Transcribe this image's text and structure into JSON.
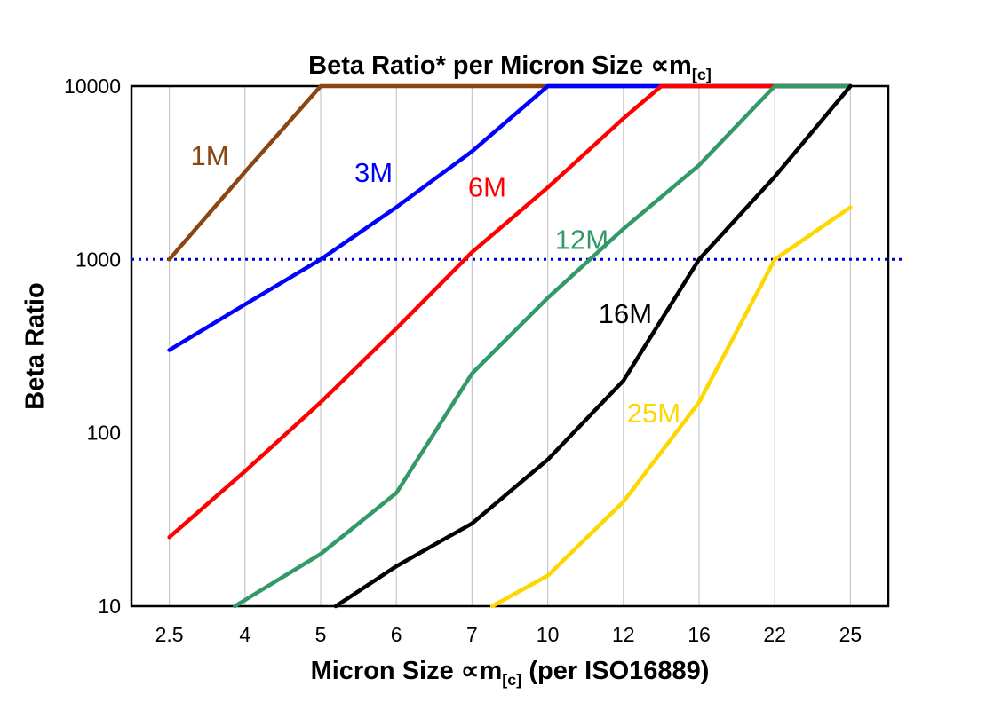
{
  "title": {
    "text": "Beta Ratio* per Micron Size ",
    "mu": "∝m",
    "sub": "[c]"
  },
  "xlabel": {
    "pre": "Micron Size ",
    "mu": "∝m",
    "sub": "[c]",
    "post": " (per ISO16889)"
  },
  "ylabel": "Beta Ratio",
  "chart_data": {
    "type": "line",
    "title": "Beta Ratio* per Micron Size ∝m[c]",
    "xlabel": "Micron Size ∝m[c] (per ISO16889)",
    "ylabel": "Beta Ratio",
    "x_categories": [
      "2.5",
      "4",
      "5",
      "6",
      "7",
      "10",
      "12",
      "16",
      "22",
      "25"
    ],
    "x_values": [
      2.5,
      4,
      5,
      6,
      7,
      10,
      12,
      16,
      22,
      25
    ],
    "y_ticks": [
      10,
      100,
      1000,
      10000
    ],
    "y_scale": "log",
    "ylim": [
      10,
      10000
    ],
    "grid": "vertical-only",
    "legend": "inline-labels",
    "reference_line": {
      "y": 1000,
      "color": "#0000CC",
      "style": "dotted"
    },
    "series": [
      {
        "name": "1M",
        "color": "#8B4513",
        "points": [
          [
            2.5,
            1000
          ],
          [
            4,
            3200
          ],
          [
            5,
            10000
          ],
          [
            25,
            10000
          ]
        ],
        "label_at": [
          3.3,
          3500
        ]
      },
      {
        "name": "3M",
        "color": "#0000FF",
        "points": [
          [
            2.5,
            300
          ],
          [
            4,
            550
          ],
          [
            5,
            1000
          ],
          [
            6,
            2000
          ],
          [
            7,
            4200
          ],
          [
            10,
            10000
          ],
          [
            25,
            10000
          ]
        ],
        "label_at": [
          5.7,
          2800
        ]
      },
      {
        "name": "6M",
        "color": "#FF0000",
        "points": [
          [
            2.5,
            25
          ],
          [
            4,
            60
          ],
          [
            5,
            150
          ],
          [
            6,
            400
          ],
          [
            7,
            1100
          ],
          [
            10,
            2600
          ],
          [
            12,
            6500
          ],
          [
            14,
            10000
          ],
          [
            25,
            10000
          ]
        ],
        "label_at": [
          7.6,
          2300
        ]
      },
      {
        "name": "12M",
        "color": "#339966",
        "points": [
          [
            3.8,
            10
          ],
          [
            5,
            20
          ],
          [
            6,
            45
          ],
          [
            7,
            220
          ],
          [
            10,
            600
          ],
          [
            12,
            1500
          ],
          [
            16,
            3500
          ],
          [
            22,
            10000
          ],
          [
            25,
            10000
          ]
        ],
        "label_at": [
          10.9,
          1150
        ]
      },
      {
        "name": "16M",
        "color": "#000000",
        "points": [
          [
            5.2,
            10
          ],
          [
            6,
            17
          ],
          [
            7,
            30
          ],
          [
            10,
            70
          ],
          [
            12,
            200
          ],
          [
            16,
            1000
          ],
          [
            22,
            3000
          ],
          [
            25,
            10000
          ]
        ],
        "label_at": [
          12.1,
          430
        ]
      },
      {
        "name": "25M",
        "color": "#FFD700",
        "points": [
          [
            7.8,
            10
          ],
          [
            10,
            15
          ],
          [
            12,
            40
          ],
          [
            16,
            150
          ],
          [
            22,
            1000
          ],
          [
            25,
            2000
          ]
        ],
        "label_at": [
          13.6,
          115
        ]
      }
    ]
  }
}
